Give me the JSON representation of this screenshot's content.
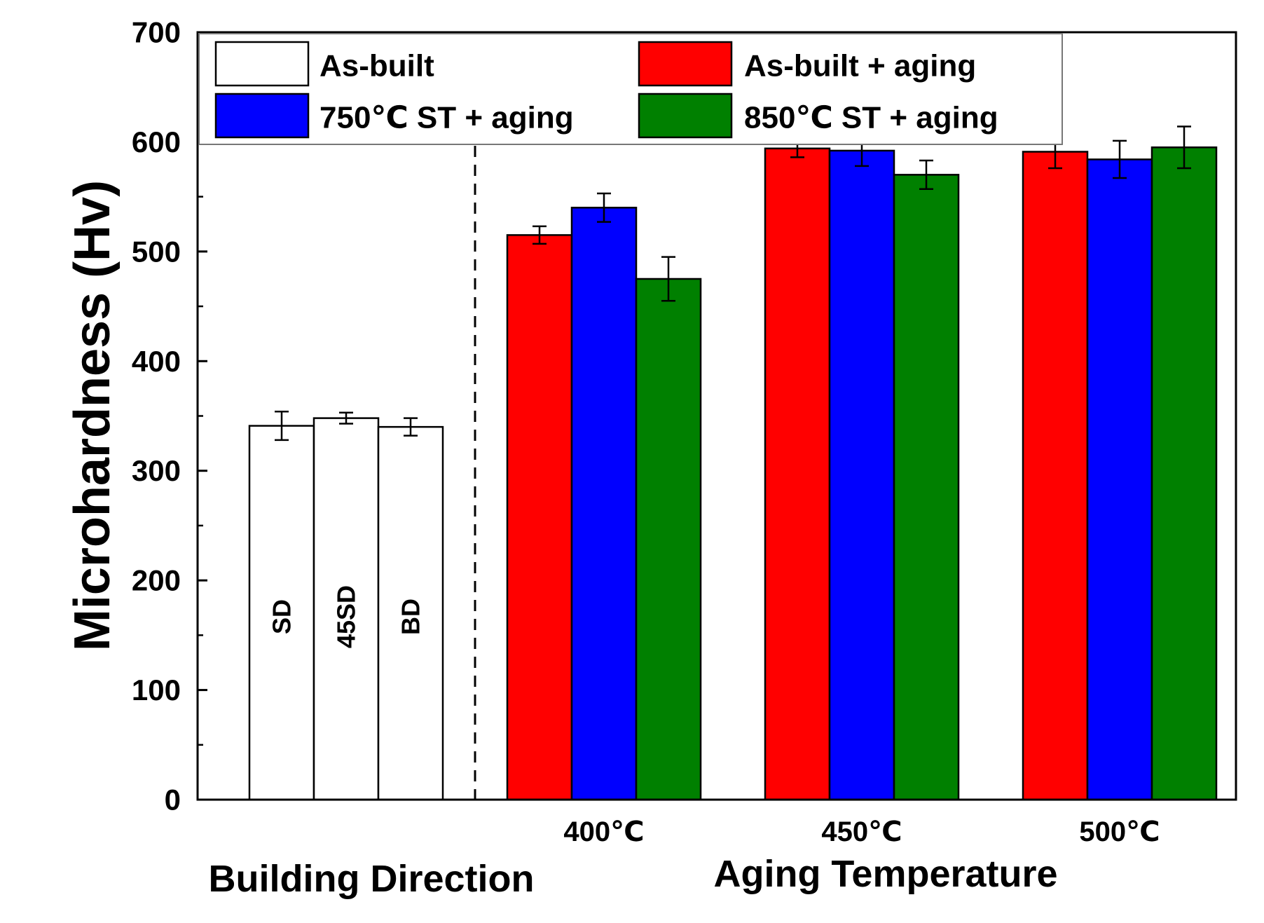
{
  "chart_data": {
    "type": "bar",
    "ylabel": "Microhardness (Hv)",
    "ylim": [
      0,
      700
    ],
    "yticks": [
      0,
      100,
      200,
      300,
      400,
      500,
      600,
      700
    ],
    "legend_position": "top",
    "legend": [
      {
        "name": "As-built",
        "color": "#ffffff"
      },
      {
        "name": "As-built + aging",
        "color": "#ff0000"
      },
      {
        "name": "750℃ ST + aging",
        "color": "#0000ff"
      },
      {
        "name": "850℃ ST + aging",
        "color": "#008000"
      }
    ],
    "building_direction": {
      "title": "Building Direction",
      "series": "As-built",
      "bars": [
        {
          "label": "SD",
          "value": 341,
          "error": 13
        },
        {
          "label": "45SD",
          "value": 348,
          "error": 5
        },
        {
          "label": "BD",
          "value": 340,
          "error": 8
        }
      ]
    },
    "aging_temperature": {
      "title": "Aging Temperature",
      "categories": [
        "400℃",
        "450℃",
        "500℃"
      ],
      "series": [
        {
          "name": "As-built + aging",
          "color": "#ff0000",
          "values": [
            515,
            594,
            591
          ],
          "errors": [
            8,
            8,
            15
          ]
        },
        {
          "name": "750℃ ST + aging",
          "color": "#0000ff",
          "values": [
            540,
            592,
            584
          ],
          "errors": [
            13,
            14,
            17
          ]
        },
        {
          "name": "850℃ ST + aging",
          "color": "#008000",
          "values": [
            475,
            570,
            595
          ],
          "errors": [
            20,
            13,
            19
          ]
        }
      ]
    }
  }
}
